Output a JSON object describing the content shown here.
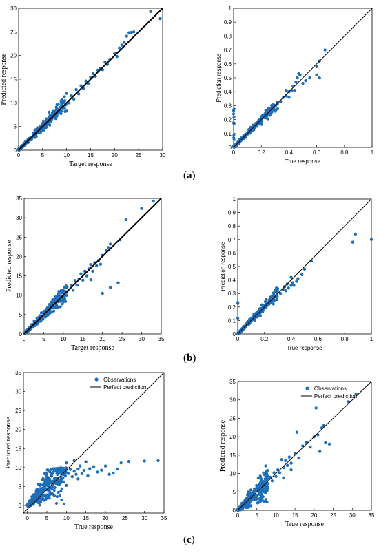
{
  "labels": {
    "a": "a",
    "b": "b",
    "c": "c"
  },
  "colors": {
    "marker": "#1f6fb8",
    "line": "#000000",
    "axis": "#000000"
  },
  "chart_data": [
    {
      "type": "scatter",
      "panel": "a",
      "position": "left",
      "xlabel": "Target response",
      "ylabel": "Predicted response",
      "xlim": [
        0,
        30
      ],
      "ylim": [
        0,
        30
      ],
      "xticks": [
        0,
        5,
        10,
        15,
        20,
        25,
        30
      ],
      "yticks": [
        0,
        5,
        10,
        15,
        20,
        25,
        30
      ],
      "tick_labels_x": [
        "0",
        "5",
        "10",
        "15",
        "20",
        "25",
        "30"
      ],
      "tick_labels_y": [
        "0",
        "5",
        "10",
        "15",
        "20",
        "25",
        "30"
      ],
      "ref_line": [
        [
          0,
          0
        ],
        [
          30,
          30
        ]
      ],
      "ref_line_width": 2,
      "cluster": {
        "xmin": 0,
        "xmax": 10,
        "spread": 0.09,
        "count": 320,
        "seed": 11
      },
      "points": [
        [
          11,
          11.5
        ],
        [
          12,
          12.8
        ],
        [
          12.5,
          11.9
        ],
        [
          13,
          13.6
        ],
        [
          13.5,
          13
        ],
        [
          14,
          14.6
        ],
        [
          14.5,
          14.1
        ],
        [
          15,
          15.4
        ],
        [
          15.5,
          16.2
        ],
        [
          16,
          15.6
        ],
        [
          16.5,
          16.9
        ],
        [
          17,
          17.3
        ],
        [
          17.5,
          17
        ],
        [
          18,
          18.6
        ],
        [
          18.5,
          18.1
        ],
        [
          19,
          19.2
        ],
        [
          20,
          20.4
        ],
        [
          20.5,
          19.8
        ],
        [
          21,
          21.6
        ],
        [
          21.5,
          22.2
        ],
        [
          22,
          22.8
        ],
        [
          22.5,
          24.1
        ],
        [
          23,
          24.8
        ],
        [
          23.5,
          24.9
        ],
        [
          24,
          25
        ],
        [
          27.5,
          29.3
        ],
        [
          29.5,
          27.8
        ],
        [
          10,
          12
        ],
        [
          9,
          10.7
        ],
        [
          8,
          9.6
        ],
        [
          10.5,
          10
        ],
        [
          11.5,
          10.8
        ]
      ]
    },
    {
      "type": "scatter",
      "panel": "a",
      "position": "right",
      "xlabel": "True response",
      "ylabel": "Prediction response",
      "xlim": [
        0,
        1
      ],
      "ylim": [
        0,
        1
      ],
      "xticks": [
        0,
        0.2,
        0.4,
        0.6,
        0.8,
        1
      ],
      "yticks": [
        0,
        0.1,
        0.2,
        0.3,
        0.4,
        0.5,
        0.6,
        0.7,
        0.8,
        0.9,
        1
      ],
      "tick_labels_x": [
        "0",
        "0.2",
        "0.4",
        "0.6",
        "0.8",
        "1"
      ],
      "tick_labels_y": [
        "0",
        "0.1",
        "0.2",
        "0.3",
        "0.4",
        "0.5",
        "0.6",
        "0.7",
        "0.8",
        "0.9",
        "1"
      ],
      "ref_line": [
        [
          0,
          0
        ],
        [
          1,
          1
        ]
      ],
      "ref_line_width": 1,
      "cluster": {
        "xmin": 0,
        "xmax": 0.32,
        "spread": 0.07,
        "count": 320,
        "seed": 23
      },
      "points": [
        [
          0.34,
          0.33
        ],
        [
          0.36,
          0.36
        ],
        [
          0.38,
          0.37
        ],
        [
          0.4,
          0.4
        ],
        [
          0.42,
          0.41
        ],
        [
          0.43,
          0.44
        ],
        [
          0.45,
          0.47
        ],
        [
          0.46,
          0.5
        ],
        [
          0.47,
          0.53
        ],
        [
          0.48,
          0.52
        ],
        [
          0.44,
          0.41
        ],
        [
          0.5,
          0.46
        ],
        [
          0.52,
          0.48
        ],
        [
          0.55,
          0.5
        ],
        [
          0.6,
          0.58
        ],
        [
          0.62,
          0.62
        ],
        [
          0.6,
          0.52
        ],
        [
          0.62,
          0.5
        ],
        [
          0.66,
          0.7
        ],
        [
          0.4,
          0.36
        ],
        [
          0.38,
          0.41
        ]
      ]
    },
    {
      "type": "scatter",
      "panel": "b",
      "position": "left",
      "xlabel": "Target response",
      "ylabel": "Predicted response",
      "xlim": [
        0,
        35
      ],
      "ylim": [
        0,
        35
      ],
      "xticks": [
        0,
        5,
        10,
        15,
        20,
        25,
        30,
        35
      ],
      "yticks": [
        0,
        5,
        10,
        15,
        20,
        25,
        30,
        35
      ],
      "tick_labels_x": [
        "0",
        "5",
        "10",
        "15",
        "20",
        "25",
        "30",
        "35"
      ],
      "tick_labels_y": [
        "0",
        "5",
        "10",
        "15",
        "20",
        "25",
        "30",
        "35"
      ],
      "ref_line": [
        [
          0,
          0
        ],
        [
          35,
          35
        ]
      ],
      "ref_line_width": 2,
      "cluster": {
        "xmin": 0,
        "xmax": 11,
        "spread": 0.12,
        "count": 320,
        "seed": 37
      },
      "points": [
        [
          12,
          12.6
        ],
        [
          12.5,
          11.3
        ],
        [
          13,
          13.8
        ],
        [
          13.5,
          12.6
        ],
        [
          14,
          14.2
        ],
        [
          14.5,
          15.5
        ],
        [
          15,
          13.9
        ],
        [
          15.5,
          16.2
        ],
        [
          16,
          15
        ],
        [
          16.5,
          16.8
        ],
        [
          17,
          17.9
        ],
        [
          17.5,
          16.2
        ],
        [
          18,
          18.4
        ],
        [
          18.5,
          17.6
        ],
        [
          19,
          19
        ],
        [
          20,
          20.3
        ],
        [
          21,
          21.5
        ],
        [
          21.5,
          22.3
        ],
        [
          22,
          23.2
        ],
        [
          22,
          12
        ],
        [
          20,
          10.5
        ],
        [
          24,
          13.2
        ],
        [
          24.5,
          24.3
        ],
        [
          26,
          29.5
        ],
        [
          30,
          32.4
        ],
        [
          33,
          34.3
        ],
        [
          19.5,
          18
        ],
        [
          17,
          14
        ]
      ]
    },
    {
      "type": "scatter",
      "panel": "b",
      "position": "right",
      "xlabel": "True response",
      "ylabel": "Prediction response",
      "xlim": [
        0,
        1
      ],
      "ylim": [
        0,
        1
      ],
      "xticks": [
        0,
        0.2,
        0.4,
        0.6,
        0.8,
        1
      ],
      "yticks": [
        0,
        0.1,
        0.2,
        0.3,
        0.4,
        0.5,
        0.6,
        0.7,
        0.8,
        0.9,
        1
      ],
      "tick_labels_x": [
        "0",
        "0.2",
        "0.4",
        "0.6",
        "0.8",
        "1"
      ],
      "tick_labels_y": [
        "0",
        "0.1",
        "0.2",
        "0.3",
        "0.4",
        "0.5",
        "0.6",
        "0.7",
        "0.8",
        "0.9",
        "1"
      ],
      "ref_line": [
        [
          0,
          0
        ],
        [
          1,
          1
        ]
      ],
      "ref_line_width": 1,
      "cluster": {
        "xmin": 0,
        "xmax": 0.3,
        "spread": 0.08,
        "count": 320,
        "seed": 41
      },
      "points": [
        [
          0.32,
          0.3
        ],
        [
          0.34,
          0.33
        ],
        [
          0.35,
          0.35
        ],
        [
          0.36,
          0.32
        ],
        [
          0.37,
          0.37
        ],
        [
          0.38,
          0.34
        ],
        [
          0.4,
          0.36
        ],
        [
          0.41,
          0.38
        ],
        [
          0.42,
          0.36
        ],
        [
          0.44,
          0.39
        ],
        [
          0.45,
          0.41
        ],
        [
          0.48,
          0.44
        ],
        [
          0.5,
          0.48
        ],
        [
          0.55,
          0.54
        ],
        [
          0.4,
          0.42
        ],
        [
          0.86,
          0.68
        ],
        [
          0.88,
          0.74
        ],
        [
          1.0,
          0.7
        ]
      ]
    },
    {
      "type": "scatter",
      "panel": "c",
      "position": "left",
      "xlabel": "True response",
      "ylabel": "Predicted response",
      "xlim": [
        -1,
        35
      ],
      "ylim": [
        -2,
        35
      ],
      "xticks": [
        0,
        5,
        10,
        15,
        20,
        25,
        30,
        35
      ],
      "yticks": [
        0,
        5,
        10,
        15,
        20,
        25,
        30,
        35
      ],
      "tick_labels_x": [
        "0",
        "5",
        "10",
        "15",
        "20",
        "25",
        "30",
        "35"
      ],
      "tick_labels_y": [
        "0",
        "5",
        "10",
        "15",
        "20",
        "25",
        "30",
        "35"
      ],
      "ref_line": [
        [
          -1,
          -2
        ],
        [
          35,
          35
        ]
      ],
      "ref_line_width": 1,
      "legend": {
        "placement": "top-left",
        "entries": [
          "Observations",
          "Perfect prediction"
        ]
      },
      "cluster": {
        "xmin": 0,
        "xmax": 10,
        "spread": 0.45,
        "count": 380,
        "seed": 53,
        "capped": 10
      },
      "points": [
        [
          10.5,
          8.4
        ],
        [
          11,
          9.5
        ],
        [
          11.5,
          7.6
        ],
        [
          12,
          9
        ],
        [
          12.5,
          8.2
        ],
        [
          13,
          9.6
        ],
        [
          13.5,
          10.4
        ],
        [
          14,
          8.4
        ],
        [
          14.5,
          9.2
        ],
        [
          15,
          11.5
        ],
        [
          15.5,
          7.8
        ],
        [
          16,
          9.7
        ],
        [
          17,
          10.2
        ],
        [
          18,
          8.8
        ],
        [
          19,
          9.3
        ],
        [
          20,
          10.4
        ],
        [
          21,
          8.2
        ],
        [
          22,
          8.5
        ],
        [
          23,
          9.6
        ],
        [
          24,
          11.2
        ],
        [
          26,
          11.6
        ],
        [
          30,
          11.7
        ],
        [
          33.5,
          11.8
        ],
        [
          9,
          9.6
        ],
        [
          10,
          11.2
        ],
        [
          12,
          11.8
        ],
        [
          13,
          7
        ]
      ]
    },
    {
      "type": "scatter",
      "panel": "c",
      "position": "right",
      "xlabel": "True response",
      "ylabel": "Predicted response",
      "xlim": [
        0,
        35
      ],
      "ylim": [
        0,
        35
      ],
      "xticks": [
        0,
        5,
        10,
        15,
        20,
        25,
        30,
        35
      ],
      "yticks": [
        0,
        5,
        10,
        15,
        20,
        25,
        30,
        35
      ],
      "tick_labels_x": [
        "0",
        "5",
        "10",
        "15",
        "20",
        "25",
        "30",
        "35"
      ],
      "tick_labels_y": [
        "0",
        "5",
        "10",
        "15",
        "20",
        "25",
        "30",
        "35"
      ],
      "ref_line": [
        [
          0,
          0
        ],
        [
          35,
          35
        ]
      ],
      "ref_line_width": 1,
      "legend": {
        "placement": "top-left",
        "entries": [
          "Observations",
          "Perfect prediction"
        ]
      },
      "cluster": {
        "xmin": 0,
        "xmax": 8,
        "spread": 0.3,
        "count": 320,
        "seed": 67
      },
      "points": [
        [
          8.5,
          9
        ],
        [
          9,
          8
        ],
        [
          9.5,
          10.2
        ],
        [
          10,
          9.2
        ],
        [
          10.5,
          11
        ],
        [
          11,
          10.2
        ],
        [
          11.5,
          13.8
        ],
        [
          12,
          11.6
        ],
        [
          12.5,
          13.5
        ],
        [
          13,
          12.2
        ],
        [
          13.5,
          14.5
        ],
        [
          14,
          12.8
        ],
        [
          15,
          15.5
        ],
        [
          15.5,
          21.2
        ],
        [
          16,
          14.2
        ],
        [
          17,
          17.5
        ],
        [
          18,
          18.5
        ],
        [
          19,
          17.2
        ],
        [
          20,
          20
        ],
        [
          20.5,
          27.8
        ],
        [
          21,
          20.5
        ],
        [
          21.5,
          16
        ],
        [
          22,
          22.4
        ],
        [
          22.5,
          23
        ],
        [
          23,
          18.4
        ],
        [
          24,
          18
        ],
        [
          29,
          29.5
        ],
        [
          31,
          31.6
        ],
        [
          12,
          8.8
        ],
        [
          14,
          11
        ]
      ]
    }
  ]
}
